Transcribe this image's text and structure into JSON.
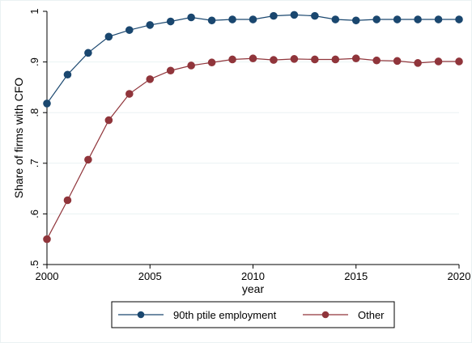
{
  "chart_data": {
    "type": "line",
    "title": "",
    "xlabel": "year",
    "ylabel": "Share of firms with CFO",
    "xlim": [
      2000,
      2020
    ],
    "ylim": [
      0.5,
      1.0
    ],
    "x_ticks": [
      2000,
      2005,
      2010,
      2015,
      2020
    ],
    "y_ticks": [
      0.5,
      0.6,
      0.7,
      0.8,
      0.9,
      1.0
    ],
    "y_tick_labels": [
      ".5",
      ".6",
      ".7",
      ".8",
      ".9",
      "1"
    ],
    "grid": "horizontal",
    "legend_position": "bottom",
    "x": [
      2000,
      2001,
      2002,
      2003,
      2004,
      2005,
      2006,
      2007,
      2008,
      2009,
      2010,
      2011,
      2012,
      2013,
      2014,
      2015,
      2016,
      2017,
      2018,
      2019,
      2020
    ],
    "series": [
      {
        "name": "90th ptile employment",
        "color": "#1a476f",
        "marker": "circle",
        "values": [
          0.818,
          0.875,
          0.918,
          0.95,
          0.963,
          0.973,
          0.98,
          0.988,
          0.982,
          0.984,
          0.984,
          0.991,
          0.993,
          0.991,
          0.984,
          0.982,
          0.984,
          0.984,
          0.984,
          0.984,
          0.984
        ]
      },
      {
        "name": "Other",
        "color": "#90353b",
        "marker": "circle",
        "values": [
          0.55,
          0.627,
          0.707,
          0.785,
          0.837,
          0.866,
          0.883,
          0.893,
          0.899,
          0.905,
          0.907,
          0.904,
          0.906,
          0.905,
          0.905,
          0.907,
          0.903,
          0.902,
          0.898,
          0.901,
          0.901
        ]
      }
    ]
  }
}
